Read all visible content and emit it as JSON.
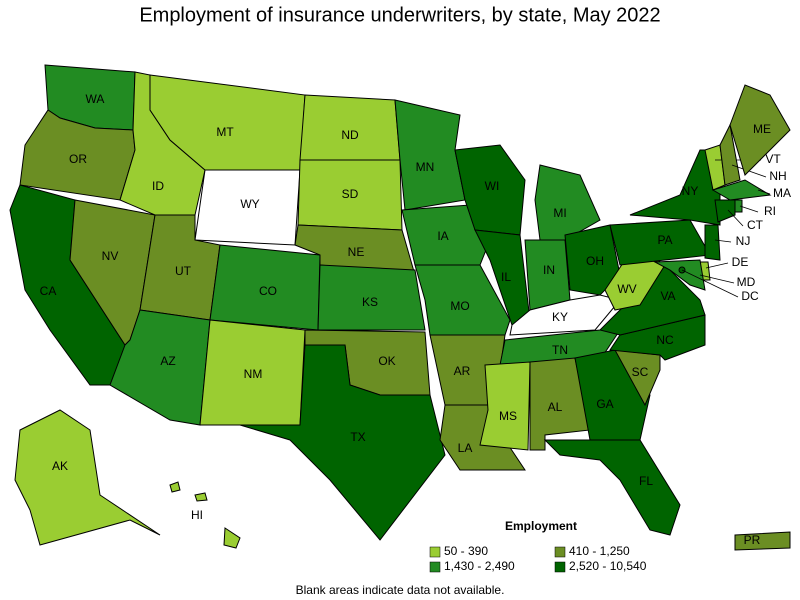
{
  "title": "Employment of insurance underwriters, by state, May 2022",
  "states": [
    {
      "label": "WA",
      "color": "#228b22"
    },
    {
      "label": "OR",
      "color": "#6b8e23"
    },
    {
      "label": "CA",
      "color": "#006400"
    },
    {
      "label": "NV",
      "color": "#6b8e23"
    },
    {
      "label": "ID",
      "color": "#9acd32"
    },
    {
      "label": "MT",
      "color": "#9acd32"
    },
    {
      "label": "WY",
      "color": "#ffffff"
    },
    {
      "label": "UT",
      "color": "#6b8e23"
    },
    {
      "label": "CO",
      "color": "#228b22"
    },
    {
      "label": "AZ",
      "color": "#228b22"
    },
    {
      "label": "NM",
      "color": "#9acd32"
    },
    {
      "label": "ND",
      "color": "#9acd32"
    },
    {
      "label": "SD",
      "color": "#9acd32"
    },
    {
      "label": "NE",
      "color": "#6b8e23"
    },
    {
      "label": "KS",
      "color": "#228b22"
    },
    {
      "label": "OK",
      "color": "#6b8e23"
    },
    {
      "label": "TX",
      "color": "#006400"
    },
    {
      "label": "MN",
      "color": "#228b22"
    },
    {
      "label": "IA",
      "color": "#228b22"
    },
    {
      "label": "MO",
      "color": "#228b22"
    },
    {
      "label": "AR",
      "color": "#6b8e23"
    },
    {
      "label": "LA",
      "color": "#6b8e23"
    },
    {
      "label": "WI",
      "color": "#006400"
    },
    {
      "label": "IL",
      "color": "#006400"
    },
    {
      "label": "MI",
      "color": "#228b22"
    },
    {
      "label": "IN",
      "color": "#228b22"
    },
    {
      "label": "OH",
      "color": "#006400"
    },
    {
      "label": "KY",
      "color": "#ffffff"
    },
    {
      "label": "TN",
      "color": "#228b22"
    },
    {
      "label": "MS",
      "color": "#9acd32"
    },
    {
      "label": "AL",
      "color": "#6b8e23"
    },
    {
      "label": "GA",
      "color": "#006400"
    },
    {
      "label": "FL",
      "color": "#006400"
    },
    {
      "label": "SC",
      "color": "#6b8e23"
    },
    {
      "label": "NC",
      "color": "#006400"
    },
    {
      "label": "VA",
      "color": "#006400"
    },
    {
      "label": "WV",
      "color": "#9acd32"
    },
    {
      "label": "PA",
      "color": "#006400"
    },
    {
      "label": "NY",
      "color": "#006400"
    },
    {
      "label": "VT",
      "color": "#9acd32"
    },
    {
      "label": "NH",
      "color": "#6b8e23"
    },
    {
      "label": "ME",
      "color": "#6b8e23"
    },
    {
      "label": "MA",
      "color": "#228b22"
    },
    {
      "label": "CT",
      "color": "#006400"
    },
    {
      "label": "RI",
      "color": "#228b22"
    },
    {
      "label": "NJ",
      "color": "#006400"
    },
    {
      "label": "DE",
      "color": "#9acd32"
    },
    {
      "label": "MD",
      "color": "#228b22"
    },
    {
      "label": "DC",
      "color": "#006400"
    },
    {
      "label": "AK",
      "color": "#9acd32"
    },
    {
      "label": "HI",
      "color": "#9acd32"
    },
    {
      "label": "PR",
      "color": "#6b8e23"
    }
  ],
  "legend": {
    "title": "Employment",
    "items": [
      {
        "label": "50 - 390",
        "color": "#9acd32"
      },
      {
        "label": "410 - 1,250",
        "color": "#6b8e23"
      },
      {
        "label": "1,430 - 2,490",
        "color": "#228b22"
      },
      {
        "label": "2,520 - 10,540",
        "color": "#006400"
      }
    ]
  },
  "note": "Blank areas indicate data not available."
}
